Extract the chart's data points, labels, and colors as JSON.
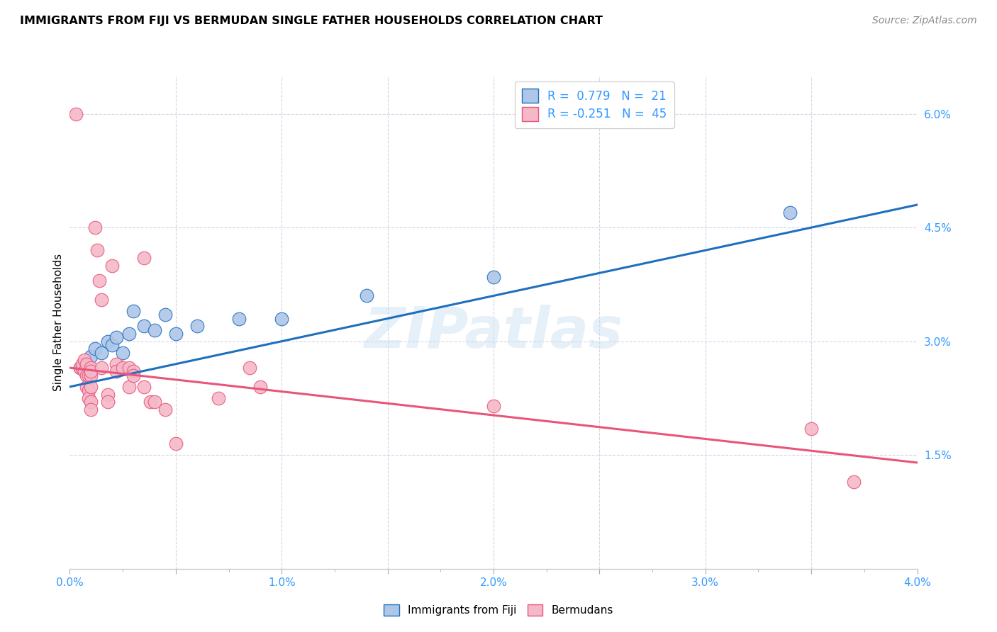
{
  "title": "IMMIGRANTS FROM FIJI VS BERMUDAN SINGLE FATHER HOUSEHOLDS CORRELATION CHART",
  "source": "Source: ZipAtlas.com",
  "ylabel": "Single Father Households",
  "xlim": [
    0.0,
    0.04
  ],
  "ylim": [
    0.0,
    0.065
  ],
  "fiji_color": "#aec6e8",
  "bermuda_color": "#f4b8c8",
  "fiji_line_color": "#1f6fbf",
  "bermuda_line_color": "#e8557a",
  "fiji_scatter": [
    [
      0.0005,
      0.0265
    ],
    [
      0.0008,
      0.027
    ],
    [
      0.001,
      0.028
    ],
    [
      0.0012,
      0.029
    ],
    [
      0.0015,
      0.0285
    ],
    [
      0.0018,
      0.03
    ],
    [
      0.002,
      0.0295
    ],
    [
      0.0022,
      0.0305
    ],
    [
      0.0025,
      0.0285
    ],
    [
      0.0028,
      0.031
    ],
    [
      0.003,
      0.034
    ],
    [
      0.0035,
      0.032
    ],
    [
      0.004,
      0.0315
    ],
    [
      0.0045,
      0.0335
    ],
    [
      0.005,
      0.031
    ],
    [
      0.006,
      0.032
    ],
    [
      0.008,
      0.033
    ],
    [
      0.01,
      0.033
    ],
    [
      0.014,
      0.036
    ],
    [
      0.02,
      0.0385
    ],
    [
      0.034,
      0.047
    ]
  ],
  "bermuda_scatter": [
    [
      0.0003,
      0.06
    ],
    [
      0.0005,
      0.0265
    ],
    [
      0.0006,
      0.0265
    ],
    [
      0.0006,
      0.027
    ],
    [
      0.0007,
      0.0275
    ],
    [
      0.0007,
      0.026
    ],
    [
      0.0008,
      0.0255
    ],
    [
      0.0008,
      0.027
    ],
    [
      0.0008,
      0.024
    ],
    [
      0.0009,
      0.0255
    ],
    [
      0.0009,
      0.0235
    ],
    [
      0.0009,
      0.0225
    ],
    [
      0.001,
      0.0265
    ],
    [
      0.001,
      0.0255
    ],
    [
      0.001,
      0.026
    ],
    [
      0.001,
      0.024
    ],
    [
      0.001,
      0.022
    ],
    [
      0.001,
      0.021
    ],
    [
      0.0012,
      0.045
    ],
    [
      0.0013,
      0.042
    ],
    [
      0.0014,
      0.038
    ],
    [
      0.0015,
      0.0355
    ],
    [
      0.0015,
      0.0265
    ],
    [
      0.0018,
      0.023
    ],
    [
      0.0018,
      0.022
    ],
    [
      0.002,
      0.04
    ],
    [
      0.0022,
      0.027
    ],
    [
      0.0022,
      0.026
    ],
    [
      0.0025,
      0.0265
    ],
    [
      0.0028,
      0.0265
    ],
    [
      0.0028,
      0.024
    ],
    [
      0.003,
      0.026
    ],
    [
      0.003,
      0.0255
    ],
    [
      0.0035,
      0.041
    ],
    [
      0.0035,
      0.024
    ],
    [
      0.0038,
      0.022
    ],
    [
      0.004,
      0.022
    ],
    [
      0.0045,
      0.021
    ],
    [
      0.005,
      0.0165
    ],
    [
      0.007,
      0.0225
    ],
    [
      0.0085,
      0.0265
    ],
    [
      0.009,
      0.024
    ],
    [
      0.02,
      0.0215
    ],
    [
      0.035,
      0.0185
    ],
    [
      0.037,
      0.0115
    ]
  ],
  "fiji_line_x": [
    0.0,
    0.04
  ],
  "fiji_line_y": [
    0.024,
    0.048
  ],
  "bermuda_line_x": [
    0.0,
    0.04
  ],
  "bermuda_line_y": [
    0.0265,
    0.014
  ],
  "watermark": "ZIPatlas",
  "background_color": "#ffffff",
  "grid_color": "#d5d5e8"
}
